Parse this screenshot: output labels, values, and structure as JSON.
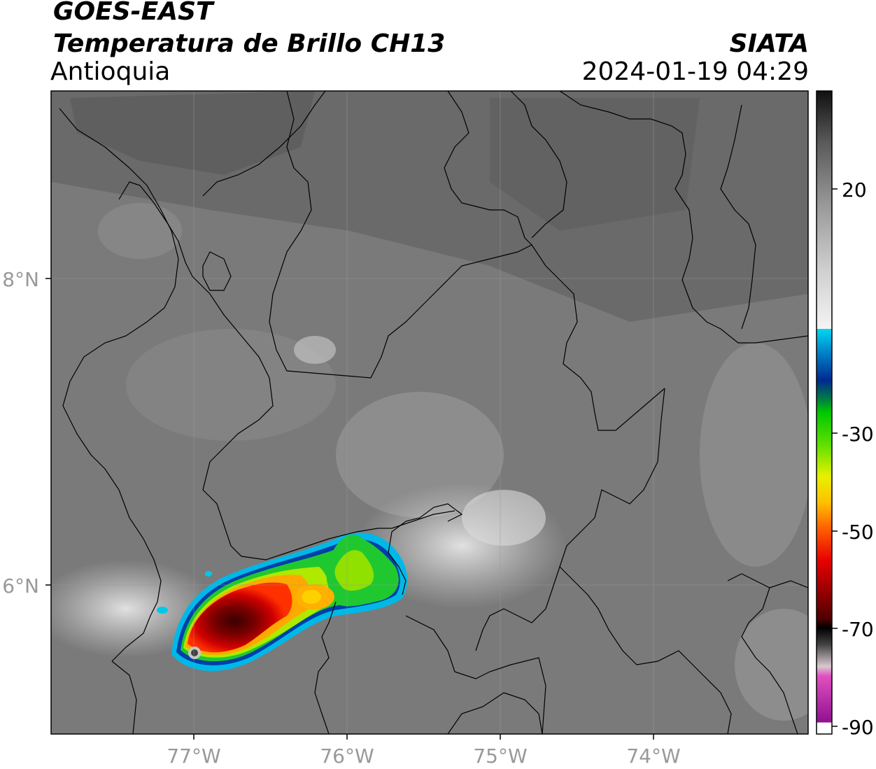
{
  "header": {
    "satellite": "GOES-EAST",
    "product": "Temperatura de Brillo CH13",
    "region": "Antioquia",
    "organization": "SIATA",
    "datetime": "2024-01-19 04:29"
  },
  "map": {
    "lat_labels": [
      "8°N",
      "6°N"
    ],
    "lon_labels": [
      "77°W",
      "76°W",
      "75°W",
      "74°W"
    ],
    "lat_range": [
      4.95,
      9.2
    ],
    "lon_range": [
      -77.95,
      -73.0
    ]
  },
  "colorbar": {
    "ticks": [
      {
        "value": 20,
        "label": "20"
      },
      {
        "value": -30,
        "label": "-30"
      },
      {
        "value": -50,
        "label": "-50"
      },
      {
        "value": -70,
        "label": "-70"
      },
      {
        "value": -90,
        "label": "-90"
      }
    ],
    "range": [
      -90,
      35
    ],
    "colors": {
      "warm_gray": "#2a2a2a",
      "cold_white": "#f0f0f0",
      "cyan": "#00d8f0",
      "blue": "#002a90",
      "green": "#00c800",
      "yellow": "#e8f000",
      "orange": "#ffa000",
      "red": "#e80000",
      "darkred": "#500000",
      "magenta": "#e050c0",
      "purple": "#901090"
    }
  }
}
